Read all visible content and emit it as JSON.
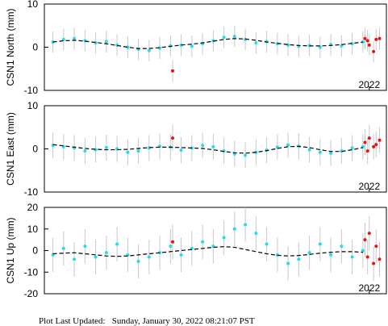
{
  "chart_data": [
    {
      "type": "scatter",
      "ylabel": "CSN1 North (mm)",
      "xlim": [
        2018.2,
        2022.2
      ],
      "ylim": [
        -10,
        10
      ],
      "yticks": [
        -10,
        0,
        10
      ],
      "xticks": [
        2022
      ],
      "series": [
        {
          "mode": "points",
          "color": "#22ddee",
          "error": 2.5,
          "x": [
            2018.3,
            2018.425,
            2018.55,
            2018.675,
            2018.8,
            2018.925,
            2019.05,
            2019.175,
            2019.3,
            2019.425,
            2019.55,
            2019.675,
            2019.8,
            2019.925,
            2020.05,
            2020.175,
            2020.3,
            2020.425,
            2020.55,
            2020.675,
            2020.8,
            2020.925,
            2021.05,
            2021.175,
            2021.3,
            2021.425,
            2021.55,
            2021.675,
            2021.8,
            2021.925
          ],
          "values": [
            1.2,
            1.8,
            2.0,
            1.5,
            1.0,
            1.3,
            0.5,
            0.0,
            -0.5,
            -0.8,
            -0.2,
            0.3,
            0.5,
            0.2,
            0.8,
            1.5,
            2.3,
            2.5,
            1.8,
            1.0,
            1.3,
            0.8,
            0.5,
            0.2,
            0.4,
            0.0,
            0.6,
            0.3,
            0.8,
            1.2
          ]
        },
        {
          "mode": "points",
          "color": "#ee1111",
          "error": 2.5,
          "x": [
            2019.7,
            2021.95,
            2021.98,
            2022.0,
            2022.05,
            2022.08,
            2022.12
          ],
          "values": [
            -5.5,
            2.0,
            1.5,
            0.5,
            -1.0,
            1.8,
            2.0
          ]
        },
        {
          "mode": "line",
          "color": "#000000",
          "x": [
            2018.3,
            2018.425,
            2018.55,
            2018.675,
            2018.8,
            2018.925,
            2019.05,
            2019.175,
            2019.3,
            2019.425,
            2019.55,
            2019.675,
            2019.8,
            2019.925,
            2020.05,
            2020.175,
            2020.3,
            2020.425,
            2020.55,
            2020.675,
            2020.8,
            2020.925,
            2021.05,
            2021.175,
            2021.3,
            2021.425,
            2021.55,
            2021.675,
            2021.8,
            2021.925
          ],
          "values": [
            1.2,
            1.5,
            1.6,
            1.4,
            1.1,
            0.8,
            0.4,
            0.0,
            -0.3,
            -0.3,
            -0.1,
            0.2,
            0.5,
            0.7,
            1.0,
            1.4,
            1.8,
            2.0,
            1.9,
            1.6,
            1.2,
            0.9,
            0.6,
            0.4,
            0.3,
            0.3,
            0.4,
            0.6,
            0.9,
            1.2
          ]
        }
      ]
    },
    {
      "type": "scatter",
      "ylabel": "CSN1 East (mm)",
      "xlim": [
        2018.2,
        2022.2
      ],
      "ylim": [
        -10,
        10
      ],
      "yticks": [
        -10,
        0,
        10
      ],
      "xticks": [
        2022
      ],
      "series": [
        {
          "mode": "points",
          "color": "#22ddee",
          "error": 3,
          "x": [
            2018.3,
            2018.425,
            2018.55,
            2018.675,
            2018.8,
            2018.925,
            2019.05,
            2019.175,
            2019.3,
            2019.425,
            2019.55,
            2019.675,
            2019.8,
            2019.925,
            2020.05,
            2020.175,
            2020.3,
            2020.425,
            2020.55,
            2020.675,
            2020.8,
            2020.925,
            2021.05,
            2021.175,
            2021.3,
            2021.425,
            2021.55,
            2021.675,
            2021.8,
            2021.925
          ],
          "values": [
            0.8,
            0.5,
            0.2,
            -0.5,
            -0.2,
            0.3,
            0.0,
            -0.8,
            -0.5,
            0.2,
            0.6,
            0.4,
            -0.3,
            0.2,
            0.8,
            0.5,
            -0.5,
            -1.2,
            -1.5,
            -0.8,
            -0.3,
            0.4,
            0.9,
            0.6,
            -0.2,
            -0.8,
            -1.0,
            -0.5,
            0.2,
            0.5
          ]
        },
        {
          "mode": "points",
          "color": "#ee1111",
          "error": 3,
          "x": [
            2019.7,
            2021.95,
            2021.98,
            2022.0,
            2022.05,
            2022.08,
            2022.12
          ],
          "values": [
            2.5,
            1.5,
            -0.5,
            2.5,
            0.5,
            1.0,
            2.0
          ]
        },
        {
          "mode": "line",
          "color": "#000000",
          "x": [
            2018.3,
            2018.425,
            2018.55,
            2018.675,
            2018.8,
            2018.925,
            2019.05,
            2019.175,
            2019.3,
            2019.425,
            2019.55,
            2019.675,
            2019.8,
            2019.925,
            2020.05,
            2020.175,
            2020.3,
            2020.425,
            2020.55,
            2020.675,
            2020.8,
            2020.925,
            2021.05,
            2021.175,
            2021.3,
            2021.425,
            2021.55,
            2021.675,
            2021.8,
            2021.925
          ],
          "values": [
            1.0,
            0.7,
            0.4,
            0.1,
            -0.1,
            -0.2,
            -0.2,
            -0.1,
            0.1,
            0.3,
            0.4,
            0.4,
            0.3,
            0.2,
            0.1,
            -0.2,
            -0.6,
            -0.9,
            -1.0,
            -0.8,
            -0.4,
            0.1,
            0.5,
            0.6,
            0.3,
            -0.2,
            -0.6,
            -0.6,
            -0.2,
            0.3
          ]
        }
      ]
    },
    {
      "type": "scatter",
      "ylabel": "CSN1 Up (mm)",
      "xlim": [
        2018.2,
        2022.2
      ],
      "ylim": [
        -20,
        20
      ],
      "yticks": [
        -20,
        -10,
        0,
        10,
        20
      ],
      "xticks": [
        2022
      ],
      "series": [
        {
          "mode": "points",
          "color": "#22ddee",
          "error": 8,
          "x": [
            2018.3,
            2018.425,
            2018.55,
            2018.675,
            2018.8,
            2018.925,
            2019.05,
            2019.175,
            2019.3,
            2019.425,
            2019.55,
            2019.675,
            2019.8,
            2019.925,
            2020.05,
            2020.175,
            2020.3,
            2020.425,
            2020.55,
            2020.675,
            2020.8,
            2020.925,
            2021.05,
            2021.175,
            2021.3,
            2021.425,
            2021.55,
            2021.675,
            2021.8,
            2021.925
          ],
          "values": [
            -2,
            1,
            -4,
            2,
            -3,
            -1,
            3,
            -2,
            -5,
            -3,
            -1,
            2,
            -2,
            1,
            4,
            2,
            6,
            10,
            12,
            8,
            3,
            -2,
            -6,
            -4,
            -1,
            3,
            -2,
            2,
            -3,
            0
          ]
        },
        {
          "mode": "points",
          "color": "#ee1111",
          "error": 8,
          "x": [
            2019.7,
            2021.95,
            2021.98,
            2022.0,
            2022.05,
            2022.08,
            2022.12
          ],
          "values": [
            4,
            5,
            -3,
            8,
            -6,
            2,
            -4
          ]
        },
        {
          "mode": "line",
          "color": "#000000",
          "x": [
            2018.3,
            2018.425,
            2018.55,
            2018.675,
            2018.8,
            2018.925,
            2019.05,
            2019.175,
            2019.3,
            2019.425,
            2019.55,
            2019.675,
            2019.8,
            2019.925,
            2020.05,
            2020.175,
            2020.3,
            2020.425,
            2020.55,
            2020.675,
            2020.8,
            2020.925,
            2021.05,
            2021.175,
            2021.3,
            2021.425,
            2021.55,
            2021.675,
            2021.8,
            2021.925
          ],
          "values": [
            -1.5,
            -1.2,
            -1.0,
            -1.5,
            -2.0,
            -2.5,
            -2.7,
            -2.5,
            -2.0,
            -1.5,
            -1.0,
            -0.5,
            0.0,
            0.5,
            1.0,
            1.5,
            1.8,
            1.5,
            0.5,
            -0.5,
            -1.5,
            -2.2,
            -2.5,
            -2.3,
            -1.8,
            -1.2,
            -0.8,
            -0.5,
            -0.5,
            -0.8
          ]
        }
      ]
    }
  ],
  "footer": "Plot Last Updated:   Sunday, January 30, 2022 08:21:07 PST"
}
